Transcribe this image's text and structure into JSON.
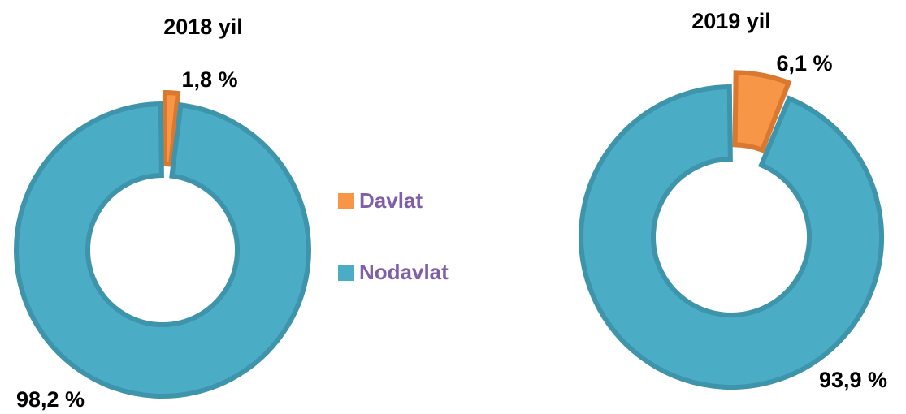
{
  "legend": {
    "labels": [
      "Davlat",
      "Nodavlat"
    ],
    "colors": [
      "#f79646",
      "#4bacc6"
    ]
  },
  "chart_data": [
    {
      "type": "donut",
      "title": "2018 yil",
      "values": [
        1.8,
        98.2
      ],
      "value_labels": [
        "1,8 %",
        "98,2 %"
      ]
    },
    {
      "type": "donut",
      "title": "2019 yil",
      "values": [
        6.1,
        93.9
      ],
      "value_labels": [
        "6,1 %",
        "93,9 %"
      ]
    }
  ]
}
